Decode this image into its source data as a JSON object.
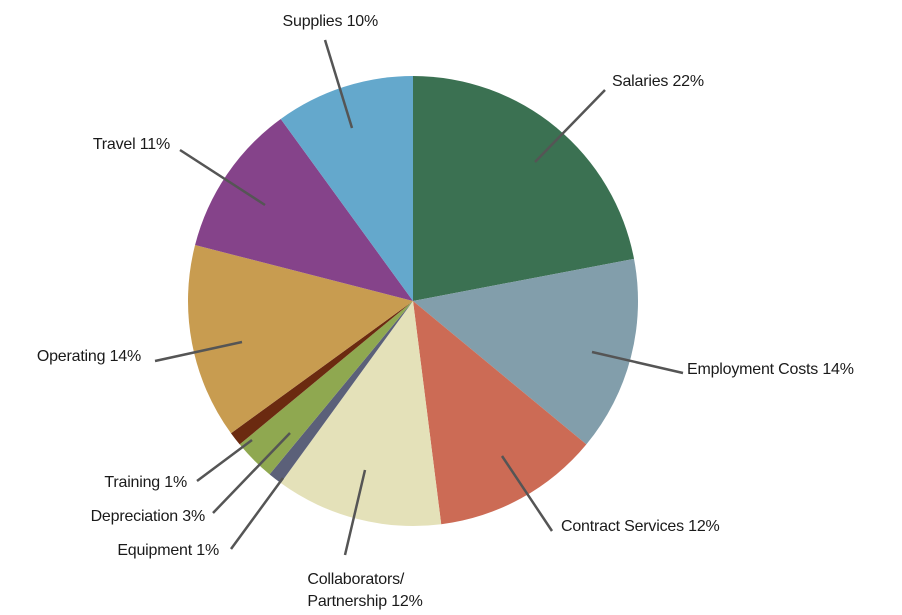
{
  "chart_data": {
    "type": "pie",
    "categories": [
      "Salaries",
      "Employment Costs",
      "Contract Services",
      "Collaborators/\nPartnership",
      "Equipment",
      "Depreciation",
      "Training",
      "Operating",
      "Travel",
      "Supplies"
    ],
    "values": [
      22,
      14,
      12,
      12,
      1,
      3,
      1,
      14,
      11,
      10
    ],
    "value_labels": [
      "22%",
      "14%",
      "12%",
      "12%",
      "1%",
      "3%",
      "1%",
      "14%",
      "11%",
      "10%"
    ],
    "colors": [
      "#3b7152",
      "#829eab",
      "#cc6b55",
      "#e4e1b9",
      "#5b6079",
      "#8fa850",
      "#6b2a10",
      "#c89c50",
      "#85438a",
      "#64a8cc"
    ]
  }
}
